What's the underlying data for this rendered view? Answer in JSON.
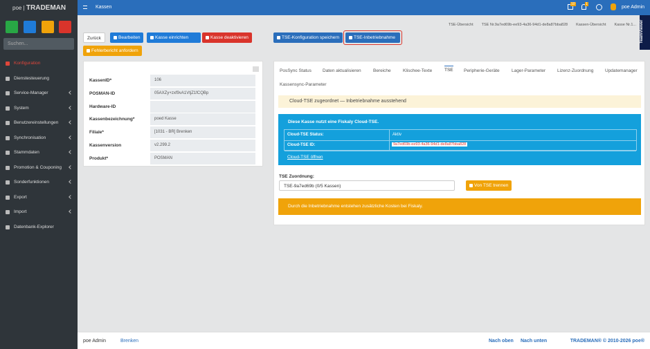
{
  "brand": {
    "logo": "poe",
    "name": "TRADEMAN"
  },
  "topbar": {
    "title": "Kassen",
    "badges": [
      "10",
      "1"
    ],
    "user": "poe Admin"
  },
  "sidebar": {
    "search": "Suchen...",
    "items": [
      {
        "label": "Konfiguration",
        "active": true
      },
      {
        "label": "Dienstesteuerung"
      },
      {
        "label": "Service-Manager",
        "sub": true
      },
      {
        "label": "System",
        "sub": true
      },
      {
        "label": "Benutzereinstellungen",
        "sub": true
      },
      {
        "label": "Synchronisation",
        "sub": true
      },
      {
        "label": "Stammdaten",
        "sub": true
      },
      {
        "label": "Promotion & Couponing",
        "sub": true
      },
      {
        "label": "Sonderfunktionen",
        "sub": true
      },
      {
        "label": "Export",
        "sub": true
      },
      {
        "label": "Import",
        "sub": true
      },
      {
        "label": "Datenbank-Explorer"
      }
    ]
  },
  "breadcrumb": [
    "TSE-Übersicht",
    "TSE Nr.9a7ed69b-ee93-4a36-94d1-de8a87bba828",
    "Kassen-Übersicht",
    "Kasse Nr.1..."
  ],
  "teamviewer": "TeamViewer",
  "buttons": {
    "back": "Zurück",
    "edit": "Bearbeiten",
    "setup": "Kasse einrichten",
    "deactivate": "Kasse deaktivieren",
    "report": "Fehlerbericht anfordern",
    "save_tse": "TSE-Konfiguration speichern",
    "commission": "TSE-Inbetriebnahme"
  },
  "fields": [
    {
      "label": "KassenID*",
      "value": "106"
    },
    {
      "label": "POSMAN-ID",
      "value": "05AXZy+zxf9vA1VtjZ1fCQBp"
    },
    {
      "label": "Hardware-ID",
      "value": null
    },
    {
      "label": "Kassenbezeichnung*",
      "value": "poed Kasse"
    },
    {
      "label": "Filiale*",
      "value": "[1031 - BR] Brenken"
    },
    {
      "label": "Kassenversion",
      "value": "v2.299.2"
    },
    {
      "label": "Produkt*",
      "value": "POSMAN"
    }
  ],
  "tabs": {
    "items": [
      "PosSync Status",
      "Daten aktualisieren",
      "Bereiche",
      "Klischee-Texte",
      "TSE",
      "Peripherie-Geräte",
      "Lager-Parameter",
      "Lizenz-Zuordnung",
      "Updatemanager",
      "Kassensync-Parameter"
    ],
    "active": 4
  },
  "tse": {
    "notice": "Cloud-TSE zugeordnet — Inbetriebnahme ausstehend",
    "info_title": "Diese Kasse nutzt eine Fiskaly Cloud-TSE.",
    "rows": [
      [
        "Cloud-TSE Status:",
        "Aktiv"
      ],
      [
        "Cloud-TSE ID:",
        "9a7ed69b-ee93-4a36-94d1-de8a87bba828"
      ]
    ],
    "link": "Cloud-TSE öffnen",
    "assign_label": "TSE Zuordnung:",
    "assign_value": "TSE-9a7ed69b (0/5 Kassen)",
    "detach": "Von TSE trennen",
    "warning": "Durch die Inbetriebnahme entstehen zusätzliche Kosten bei Fiskaly."
  },
  "footer": {
    "user": "poe Admin",
    "branch": "Brenken",
    "up": "Nach oben",
    "down": "Nach unten",
    "copyright": "TRADEMAN® © 2010-2026 poe®"
  }
}
